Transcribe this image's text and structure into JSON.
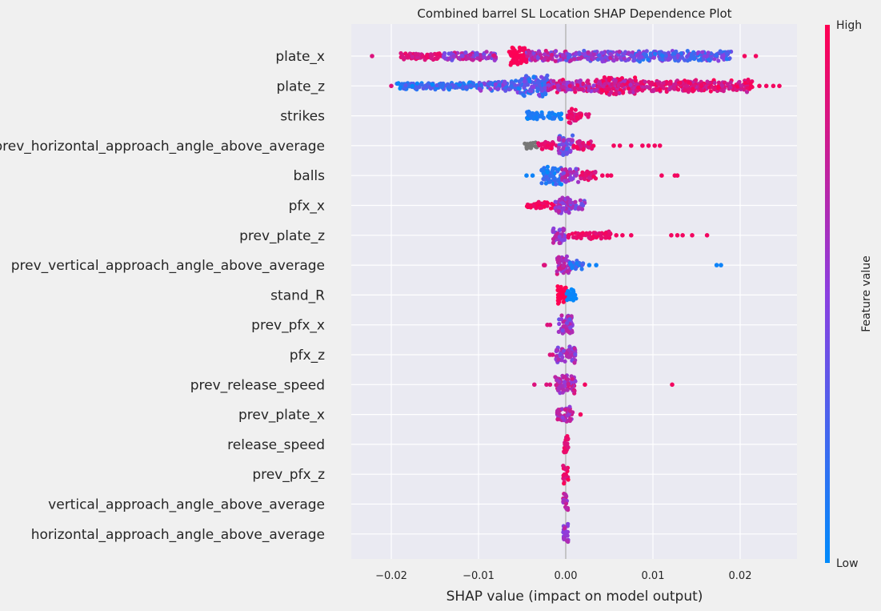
{
  "chart_data": {
    "type": "scatter",
    "subtype": "shap-beeswarm",
    "title": "Combined barrel SL Location SHAP Dependence Plot",
    "xlabel": "SHAP value (impact on model output)",
    "ylabel": "",
    "xlim": [
      -0.0248,
      0.0265
    ],
    "xticks": [
      -0.02,
      -0.01,
      0.0,
      0.01,
      0.02
    ],
    "xtick_labels": [
      "−0.02",
      "−0.01",
      "0.00",
      "0.01",
      "0.02"
    ],
    "grid": true,
    "colorbar": {
      "label": "Feature value",
      "high_label": "High",
      "low_label": "Low",
      "low_color": "#008bfb",
      "high_color": "#ff0052",
      "missing_color": "#777777"
    },
    "features": [
      {
        "name": "plate_x",
        "range": [
          -0.0222,
          0.0218
        ],
        "core": [
          -0.019,
          0.019
        ],
        "extras": [
          -0.0222,
          0.0205,
          0.0218
        ],
        "segments": [
          {
            "from": -0.019,
            "to": -0.014,
            "color": [
              0.75,
              0.95
            ],
            "h": 5
          },
          {
            "from": -0.014,
            "to": -0.008,
            "color": [
              0.35,
              0.85
            ],
            "h": 6
          },
          {
            "from": -0.0065,
            "to": -0.0045,
            "color": [
              0.95,
              1.0
            ],
            "h": 13
          },
          {
            "from": -0.0045,
            "to": 0.0,
            "color": [
              0.4,
              0.85
            ],
            "h": 7
          },
          {
            "from": 0.0,
            "to": 0.008,
            "color": [
              0.25,
              0.75
            ],
            "h": 7
          },
          {
            "from": 0.008,
            "to": 0.019,
            "color": [
              0.1,
              0.55
            ],
            "h": 7
          }
        ]
      },
      {
        "name": "plate_z",
        "range": [
          -0.02,
          0.0245
        ],
        "core": [
          -0.0195,
          0.0215
        ],
        "extras": [
          0.0222,
          0.023,
          0.0238,
          0.0245,
          -0.02
        ],
        "segments": [
          {
            "from": -0.0195,
            "to": -0.01,
            "color": [
              0.0,
              0.35
            ],
            "h": 5
          },
          {
            "from": -0.01,
            "to": -0.0055,
            "color": [
              0.1,
              0.6
            ],
            "h": 7
          },
          {
            "from": -0.0055,
            "to": -0.002,
            "color": [
              0.05,
              0.55
            ],
            "h": 14
          },
          {
            "from": -0.002,
            "to": 0.004,
            "color": [
              0.5,
              0.95
            ],
            "h": 9
          },
          {
            "from": 0.004,
            "to": 0.008,
            "color": [
              0.6,
              1.0
            ],
            "h": 12
          },
          {
            "from": 0.008,
            "to": 0.0215,
            "color": [
              0.7,
              1.0
            ],
            "h": 8
          }
        ]
      },
      {
        "name": "strikes",
        "range": [
          -0.0046,
          0.0027
        ],
        "core": [
          -0.0046,
          0.0027
        ],
        "extras": [],
        "segments": [
          {
            "from": -0.0046,
            "to": -0.0005,
            "color": [
              0.0,
              0.15
            ],
            "h": 6
          },
          {
            "from": 0.0002,
            "to": 0.0012,
            "color": [
              0.75,
              1.0
            ],
            "h": 11
          },
          {
            "from": 0.0012,
            "to": 0.0027,
            "color": [
              0.8,
              1.0
            ],
            "h": 5
          }
        ]
      },
      {
        "name": "prev_horizontal_approach_angle_above_average",
        "range": [
          -0.0047,
          0.0108
        ],
        "core": [
          -0.0047,
          0.0032
        ],
        "extras": [
          0.0055,
          0.0062,
          0.0075,
          0.0088,
          0.0095,
          0.0102,
          0.0108
        ],
        "segments": [
          {
            "from": -0.0047,
            "to": -0.0033,
            "color": "missing",
            "h": 5
          },
          {
            "from": -0.0033,
            "to": -0.0008,
            "color": [
              0.85,
              1.0
            ],
            "h": 5
          },
          {
            "from": -0.0008,
            "to": 0.0008,
            "color": [
              0.2,
              0.7
            ],
            "h": 14
          },
          {
            "from": 0.0008,
            "to": 0.0032,
            "color": [
              0.75,
              1.0
            ],
            "h": 6
          }
        ]
      },
      {
        "name": "balls",
        "range": [
          -0.0045,
          0.0128
        ],
        "core": [
          -0.0028,
          0.0035
        ],
        "extras": [
          -0.0045,
          -0.0038,
          0.0042,
          0.0048,
          0.0052,
          0.011,
          0.0125,
          0.0128
        ],
        "segments": [
          {
            "from": -0.0028,
            "to": -0.0005,
            "color": [
              0.0,
              0.3
            ],
            "h": 12
          },
          {
            "from": -0.0005,
            "to": 0.0015,
            "color": [
              0.4,
              0.8
            ],
            "h": 9
          },
          {
            "from": 0.0015,
            "to": 0.0035,
            "color": [
              0.75,
              1.0
            ],
            "h": 6
          }
        ]
      },
      {
        "name": "pfx_x",
        "range": [
          -0.0045,
          0.0022
        ],
        "core": [
          -0.0045,
          0.0022
        ],
        "extras": [],
        "segments": [
          {
            "from": -0.0045,
            "to": -0.0012,
            "color": [
              0.9,
              1.0
            ],
            "h": 5
          },
          {
            "from": -0.0012,
            "to": 0.0005,
            "color": [
              0.45,
              0.75
            ],
            "h": 12
          },
          {
            "from": 0.0005,
            "to": 0.0022,
            "color": [
              0.35,
              0.7
            ],
            "h": 7
          }
        ]
      },
      {
        "name": "prev_plate_z",
        "range": [
          -0.0015,
          0.0162
        ],
        "core": [
          -0.0015,
          0.0052
        ],
        "extras": [
          0.0058,
          0.0065,
          0.0075,
          0.0121,
          0.0128,
          0.0134,
          0.0145,
          0.0162
        ],
        "segments": [
          {
            "from": -0.0015,
            "to": 0.0002,
            "color": [
              0.4,
              0.75
            ],
            "h": 11
          },
          {
            "from": 0.0002,
            "to": 0.0052,
            "color": [
              0.85,
              1.0
            ],
            "h": 5
          }
        ]
      },
      {
        "name": "prev_vertical_approach_angle_above_average",
        "range": [
          -0.0025,
          0.0178
        ],
        "core": [
          -0.001,
          0.002
        ],
        "extras": [
          -0.0025,
          -0.0024,
          0.0027,
          0.0035,
          0.0173,
          0.0178
        ],
        "segments": [
          {
            "from": -0.001,
            "to": 0.0005,
            "color": [
              0.5,
              0.85
            ],
            "h": 12
          },
          {
            "from": 0.0005,
            "to": 0.002,
            "color": [
              0.05,
              0.3
            ],
            "h": 6
          }
        ]
      },
      {
        "name": "stand_R",
        "range": [
          -0.001,
          0.0012
        ],
        "core": [
          -0.001,
          0.0012
        ],
        "extras": [],
        "segments": [
          {
            "from": -0.001,
            "to": 0.0001,
            "color": [
              1.0,
              1.0
            ],
            "h": 12
          },
          {
            "from": 0.0001,
            "to": 0.0012,
            "color": [
              0.0,
              0.05
            ],
            "h": 9
          }
        ]
      },
      {
        "name": "prev_pfx_x",
        "range": [
          -0.0021,
          0.0008
        ],
        "core": [
          -0.0008,
          0.0008
        ],
        "extras": [
          -0.0021,
          -0.0018
        ],
        "segments": [
          {
            "from": -0.0008,
            "to": 0.0008,
            "color": [
              0.35,
              0.75
            ],
            "h": 13
          }
        ]
      },
      {
        "name": "pfx_z",
        "range": [
          -0.0018,
          0.0011
        ],
        "core": [
          -0.0011,
          0.0011
        ],
        "extras": [
          -0.0018,
          -0.0015
        ],
        "segments": [
          {
            "from": -0.0011,
            "to": 0.0011,
            "color": [
              0.4,
              0.75
            ],
            "h": 11
          }
        ]
      },
      {
        "name": "prev_release_speed",
        "range": [
          -0.0036,
          0.0122
        ],
        "core": [
          -0.0012,
          0.0012
        ],
        "extras": [
          -0.0036,
          -0.0022,
          -0.0018,
          0.0022,
          0.0122
        ],
        "segments": [
          {
            "from": -0.0012,
            "to": 0.0012,
            "color": [
              0.5,
              0.85
            ],
            "h": 12
          }
        ]
      },
      {
        "name": "prev_plate_x",
        "range": [
          -0.001,
          0.0017
        ],
        "core": [
          -0.001,
          0.0008
        ],
        "extras": [
          0.0017
        ],
        "segments": [
          {
            "from": -0.001,
            "to": 0.0008,
            "color": [
              0.5,
              0.85
            ],
            "h": 10
          }
        ]
      },
      {
        "name": "release_speed",
        "range": [
          -0.0003,
          0.0003
        ],
        "core": [
          -0.0003,
          0.0003
        ],
        "extras": [],
        "segments": [
          {
            "from": -0.0003,
            "to": 0.0003,
            "color": [
              0.8,
              0.95
            ],
            "h": 14
          }
        ]
      },
      {
        "name": "prev_pfx_z",
        "range": [
          -0.0003,
          0.0003
        ],
        "core": [
          -0.0003,
          0.0003
        ],
        "extras": [],
        "segments": [
          {
            "from": -0.0003,
            "to": 0.0003,
            "color": [
              0.8,
              1.0
            ],
            "h": 14
          }
        ]
      },
      {
        "name": "vertical_approach_angle_above_average",
        "range": [
          -0.0003,
          0.0003
        ],
        "core": [
          -0.0003,
          0.0003
        ],
        "extras": [],
        "segments": [
          {
            "from": -0.0003,
            "to": 0.0003,
            "color": [
              0.5,
              0.8
            ],
            "h": 14
          }
        ]
      },
      {
        "name": "horizontal_approach_angle_above_average",
        "range": [
          -0.0003,
          0.0003
        ],
        "core": [
          -0.0003,
          0.0003
        ],
        "extras": [],
        "segments": [
          {
            "from": -0.0003,
            "to": 0.0003,
            "color": [
              0.45,
              0.75
            ],
            "h": 14
          }
        ]
      }
    ]
  }
}
